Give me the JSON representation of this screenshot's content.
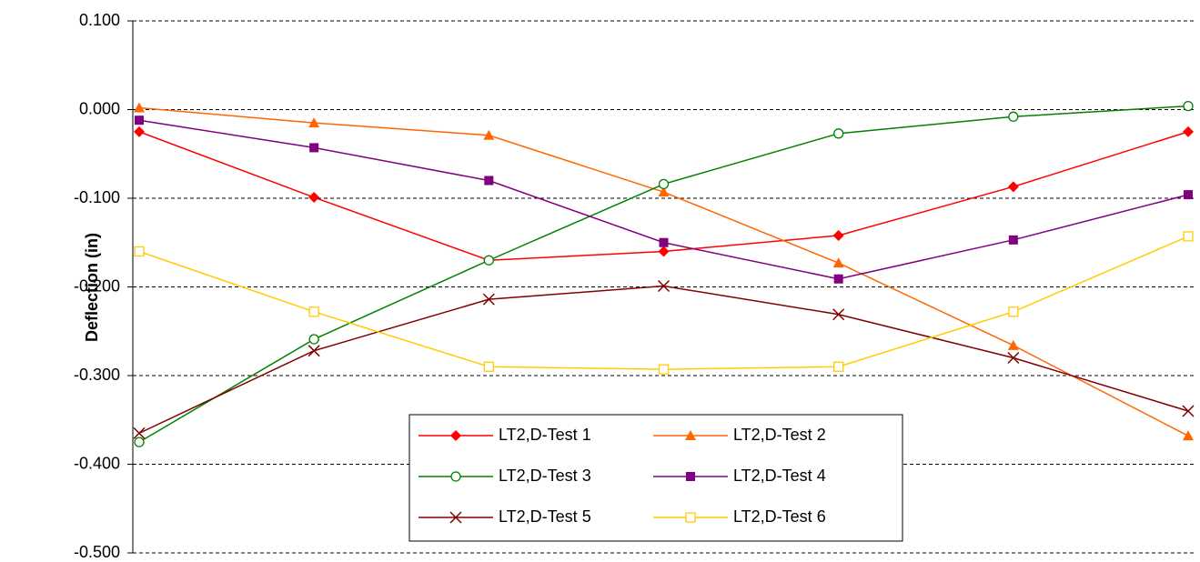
{
  "chart_data": {
    "type": "line",
    "y_label": "Deflection (in)",
    "categories": [
      null,
      null,
      null,
      null,
      null,
      null,
      null
    ],
    "series": [
      {
        "name": "LT2,D-Test 1",
        "color": "#ff0000",
        "marker": "diamond",
        "values": [
          -0.025,
          -0.099,
          -0.17,
          -0.16,
          -0.142,
          -0.087,
          -0.025
        ]
      },
      {
        "name": "LT2,D-Test 2",
        "color": "#ff6600",
        "marker": "triangle",
        "values": [
          0.002,
          -0.015,
          -0.029,
          -0.093,
          -0.173,
          -0.266,
          -0.368
        ]
      },
      {
        "name": "LT2,D-Test 3",
        "color": "#008000",
        "marker": "circle-open",
        "values": [
          -0.375,
          -0.259,
          -0.17,
          -0.084,
          -0.027,
          -0.008,
          0.004
        ]
      },
      {
        "name": "LT2,D-Test 4",
        "color": "#800080",
        "marker": "square",
        "values": [
          -0.012,
          -0.043,
          -0.08,
          -0.15,
          -0.191,
          -0.147,
          -0.096
        ]
      },
      {
        "name": "LT2,D-Test 5",
        "color": "#800000",
        "marker": "x",
        "values": [
          -0.365,
          -0.272,
          -0.214,
          -0.199,
          -0.231,
          -0.28,
          -0.34
        ]
      },
      {
        "name": "LT2,D-Test 6",
        "color": "#ffcc00",
        "marker": "square-open",
        "values": [
          -0.16,
          -0.228,
          -0.29,
          -0.293,
          -0.29,
          -0.228,
          -0.143
        ]
      }
    ],
    "ylim": [
      -0.5,
      0.1
    ],
    "yticks": [
      {
        "value": -0.5,
        "label": "-0.500"
      },
      {
        "value": -0.4,
        "label": "-0.400"
      },
      {
        "value": -0.3,
        "label": "-0.300"
      },
      {
        "value": -0.2,
        "label": "-0.200"
      },
      {
        "value": -0.1,
        "label": "-0.100"
      },
      {
        "value": 0,
        "label": "0.000"
      },
      {
        "value": 0.1,
        "label": "0.100"
      }
    ],
    "grid": true,
    "legend": "bottom"
  }
}
